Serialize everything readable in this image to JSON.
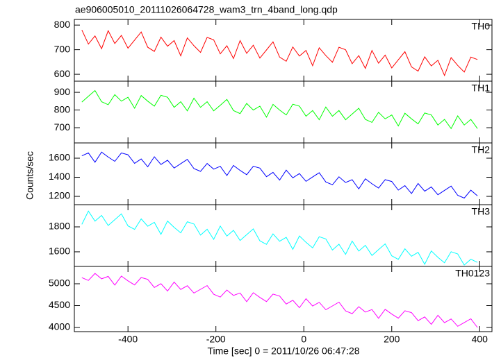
{
  "chart_data": {
    "type": "line",
    "title": "ae906005010_20111026064728_wam3_trn_4band_long.qdp",
    "x_label": "Time [sec] 0 = 2011/10/26 06:47:28",
    "y_label": "Counts/sec",
    "xlim": [
      -522,
      428
    ],
    "xticks": [
      -400,
      -200,
      0,
      200,
      400
    ],
    "x": [
      -505,
      -490,
      -475,
      -460,
      -445,
      -430,
      -415,
      -400,
      -385,
      -370,
      -355,
      -340,
      -325,
      -310,
      -295,
      -280,
      -265,
      -250,
      -235,
      -220,
      -205,
      -190,
      -175,
      -160,
      -145,
      -130,
      -115,
      -100,
      -85,
      -70,
      -55,
      -40,
      -25,
      -10,
      5,
      20,
      35,
      50,
      65,
      80,
      95,
      110,
      125,
      140,
      155,
      170,
      185,
      200,
      215,
      230,
      245,
      260,
      275,
      290,
      305,
      320,
      335,
      350,
      365,
      380,
      395
    ],
    "series": [
      {
        "name": "TH0",
        "color": "#ff0000",
        "ylim": [
          572,
          823
        ],
        "yticks": [
          600,
          700,
          800
        ],
        "values": [
          780,
          723,
          756,
          704,
          777,
          725,
          758,
          706,
          739,
          772,
          710,
          693,
          751,
          714,
          737,
          675,
          748,
          716,
          689,
          750,
          740,
          683,
          716,
          664,
          737,
          685,
          718,
          666,
          699,
          732,
          670,
          653,
          711,
          674,
          697,
          635,
          708,
          676,
          649,
          710,
          700,
          643,
          676,
          624,
          697,
          645,
          678,
          626,
          659,
          692,
          630,
          613,
          671,
          634,
          657,
          595,
          668,
          636,
          609,
          670,
          660
        ]
      },
      {
        "name": "TH1",
        "color": "#00ff00",
        "ylim": [
          614,
          963
        ],
        "yticks": [
          700,
          800,
          900
        ],
        "values": [
          845,
          878,
          910,
          847,
          830,
          887,
          850,
          872,
          810,
          882,
          850,
          822,
          883,
          872,
          815,
          847,
          795,
          867,
          815,
          847,
          795,
          827,
          860,
          797,
          780,
          837,
          800,
          822,
          760,
          832,
          800,
          772,
          833,
          822,
          765,
          797,
          745,
          817,
          765,
          797,
          745,
          777,
          810,
          747,
          730,
          787,
          750,
          772,
          710,
          782,
          750,
          722,
          783,
          772,
          715,
          747,
          695,
          767,
          715,
          747,
          695
        ]
      },
      {
        "name": "TH2",
        "color": "#0000ff",
        "ylim": [
          1113,
          1760
        ],
        "yticks": [
          1200,
          1400,
          1600
        ],
        "values": [
          1625,
          1655,
          1558,
          1664,
          1612,
          1567,
          1655,
          1636,
          1546,
          1592,
          1510,
          1615,
          1534,
          1579,
          1497,
          1543,
          1588,
          1491,
          1462,
          1545,
          1485,
          1515,
          1418,
          1524,
          1472,
          1427,
          1515,
          1496,
          1406,
          1452,
          1370,
          1475,
          1394,
          1439,
          1357,
          1403,
          1448,
          1351,
          1322,
          1405,
          1345,
          1375,
          1278,
          1384,
          1332,
          1287,
          1375,
          1356,
          1266,
          1312,
          1230,
          1335,
          1254,
          1299,
          1217,
          1263,
          1308,
          1211,
          1182,
          1265,
          1205
        ]
      },
      {
        "name": "TH3",
        "color": "#00ffff",
        "ylim": [
          1483,
          1978
        ],
        "yticks": [
          1600,
          1800
        ],
        "values": [
          1820,
          1926,
          1846,
          1892,
          1811,
          1858,
          1904,
          1808,
          1780,
          1864,
          1805,
          1836,
          1740,
          1847,
          1796,
          1752,
          1841,
          1823,
          1734,
          1781,
          1700,
          1806,
          1726,
          1772,
          1691,
          1738,
          1784,
          1688,
          1660,
          1744,
          1685,
          1716,
          1620,
          1727,
          1676,
          1632,
          1721,
          1703,
          1614,
          1661,
          1580,
          1686,
          1606,
          1652,
          1571,
          1618,
          1664,
          1568,
          1540,
          1624,
          1565,
          1596,
          1500,
          1607,
          1556,
          1512,
          1601,
          1583,
          1494,
          1541,
          1515
        ]
      },
      {
        "name": "TH0123",
        "color": "#ff00ff",
        "ylim": [
          3905,
          5397
        ],
        "yticks": [
          4000,
          4500,
          5000
        ],
        "values": [
          5140,
          5076,
          5237,
          5113,
          5169,
          4970,
          5176,
          5067,
          4973,
          5143,
          5100,
          4916,
          5002,
          4833,
          5039,
          4870,
          4956,
          4787,
          4873,
          4959,
          4760,
          4696,
          4857,
          4733,
          4789,
          4590,
          4796,
          4687,
          4593,
          4763,
          4720,
          4536,
          4622,
          4453,
          4659,
          4490,
          4576,
          4407,
          4493,
          4579,
          4380,
          4316,
          4477,
          4353,
          4409,
          4210,
          4416,
          4307,
          4213,
          4383,
          4340,
          4156,
          4242,
          4073,
          4279,
          4110,
          4196,
          4027,
          4113,
          4199,
          4000
        ]
      }
    ]
  }
}
